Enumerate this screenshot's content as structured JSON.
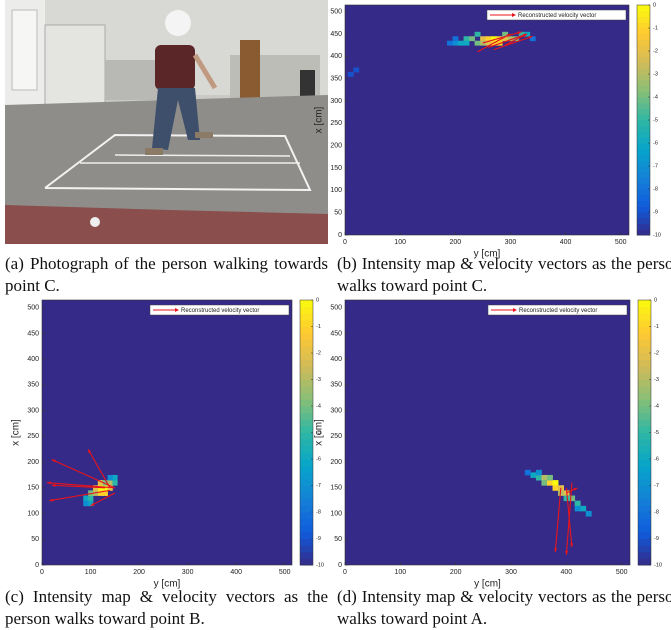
{
  "figure": {
    "axes": {
      "xlabel": "y [cm]",
      "ylabel": "x [cm]",
      "xlim": [
        0,
        515
      ],
      "ylim": [
        0,
        515
      ],
      "xticks": [
        0,
        100,
        200,
        300,
        400,
        500
      ],
      "yticks": [
        0,
        50,
        100,
        150,
        200,
        250,
        300,
        350,
        400,
        450,
        500
      ],
      "clim": [
        -10,
        0
      ],
      "cticks": [
        0,
        -1,
        -2,
        -3,
        -4,
        -5,
        -6,
        -7,
        -8,
        -9,
        -10
      ],
      "legend": "Reconstructed velocity vector",
      "vector_color": "#e8141c"
    },
    "panels": [
      {
        "type": "photo",
        "caption": "(a) Photograph of the person walking towards point C."
      },
      {
        "type": "heatmap",
        "caption": "(b) Intensity map & velocity vectors as the person walks toward point C.",
        "cells": [
          [
            200,
            430,
            -7
          ],
          [
            210,
            430,
            -6
          ],
          [
            220,
            440,
            -5
          ],
          [
            230,
            440,
            -4
          ],
          [
            240,
            430,
            -4
          ],
          [
            250,
            440,
            -2
          ],
          [
            260,
            440,
            -1
          ],
          [
            270,
            440,
            0
          ],
          [
            280,
            430,
            -1
          ],
          [
            290,
            440,
            -2
          ],
          [
            300,
            440,
            -3
          ],
          [
            310,
            440,
            -4
          ],
          [
            320,
            450,
            -5
          ],
          [
            330,
            450,
            -6
          ],
          [
            220,
            430,
            -6
          ],
          [
            250,
            430,
            -3
          ],
          [
            260,
            430,
            -2
          ],
          [
            270,
            430,
            -1
          ],
          [
            280,
            440,
            -1
          ],
          [
            290,
            450,
            -4
          ],
          [
            240,
            450,
            -5
          ],
          [
            200,
            440,
            -8
          ],
          [
            190,
            430,
            -8
          ],
          [
            340,
            440,
            -8
          ],
          [
            10,
            360,
            -9
          ],
          [
            20,
            370,
            -9
          ]
        ],
        "vectors": [
          [
            260,
            420,
            330,
            450
          ],
          [
            270,
            415,
            340,
            445
          ],
          [
            290,
            425,
            330,
            450
          ],
          [
            250,
            430,
            320,
            455
          ],
          [
            240,
            410,
            300,
            450
          ]
        ]
      },
      {
        "type": "heatmap",
        "caption": "(c) Intensity map & velocity vectors as the person walks toward point B.",
        "cells": [
          [
            90,
            130,
            -6
          ],
          [
            100,
            130,
            -5
          ],
          [
            100,
            140,
            -4
          ],
          [
            110,
            140,
            -3
          ],
          [
            120,
            140,
            -1
          ],
          [
            120,
            150,
            0
          ],
          [
            130,
            150,
            0
          ],
          [
            130,
            140,
            -1
          ],
          [
            140,
            150,
            -2
          ],
          [
            140,
            160,
            -3
          ],
          [
            150,
            160,
            -5
          ],
          [
            150,
            170,
            -6
          ],
          [
            110,
            150,
            -2
          ],
          [
            120,
            160,
            -2
          ],
          [
            100,
            120,
            -6
          ],
          [
            90,
            120,
            -7
          ],
          [
            130,
            160,
            -4
          ],
          [
            140,
            170,
            -7
          ]
        ],
        "vectors": [
          [
            150,
            150,
            20,
            205
          ],
          [
            150,
            150,
            10,
            160
          ],
          [
            140,
            145,
            15,
            125
          ],
          [
            150,
            140,
            100,
            115
          ],
          [
            140,
            150,
            95,
            225
          ],
          [
            130,
            150,
            20,
            155
          ]
        ]
      },
      {
        "type": "heatmap",
        "caption": "(d) Intensity map & velocity vectors as the person walks toward point A.",
        "cells": [
          [
            340,
            175,
            -6
          ],
          [
            350,
            170,
            -5
          ],
          [
            360,
            170,
            -3
          ],
          [
            360,
            160,
            -4
          ],
          [
            370,
            160,
            -1
          ],
          [
            380,
            160,
            0
          ],
          [
            380,
            150,
            -1
          ],
          [
            390,
            150,
            -2
          ],
          [
            390,
            140,
            -3
          ],
          [
            400,
            140,
            -2
          ],
          [
            410,
            130,
            -4
          ],
          [
            420,
            120,
            -5
          ],
          [
            430,
            110,
            -6
          ],
          [
            440,
            100,
            -7
          ],
          [
            350,
            180,
            -7
          ],
          [
            370,
            170,
            -4
          ],
          [
            400,
            130,
            -5
          ],
          [
            420,
            110,
            -7
          ],
          [
            330,
            180,
            -8
          ]
        ],
        "vectors": [
          [
            390,
            150,
            380,
            25
          ],
          [
            400,
            150,
            410,
            35
          ],
          [
            410,
            160,
            400,
            20
          ],
          [
            400,
            140,
            420,
            150
          ]
        ]
      }
    ]
  }
}
